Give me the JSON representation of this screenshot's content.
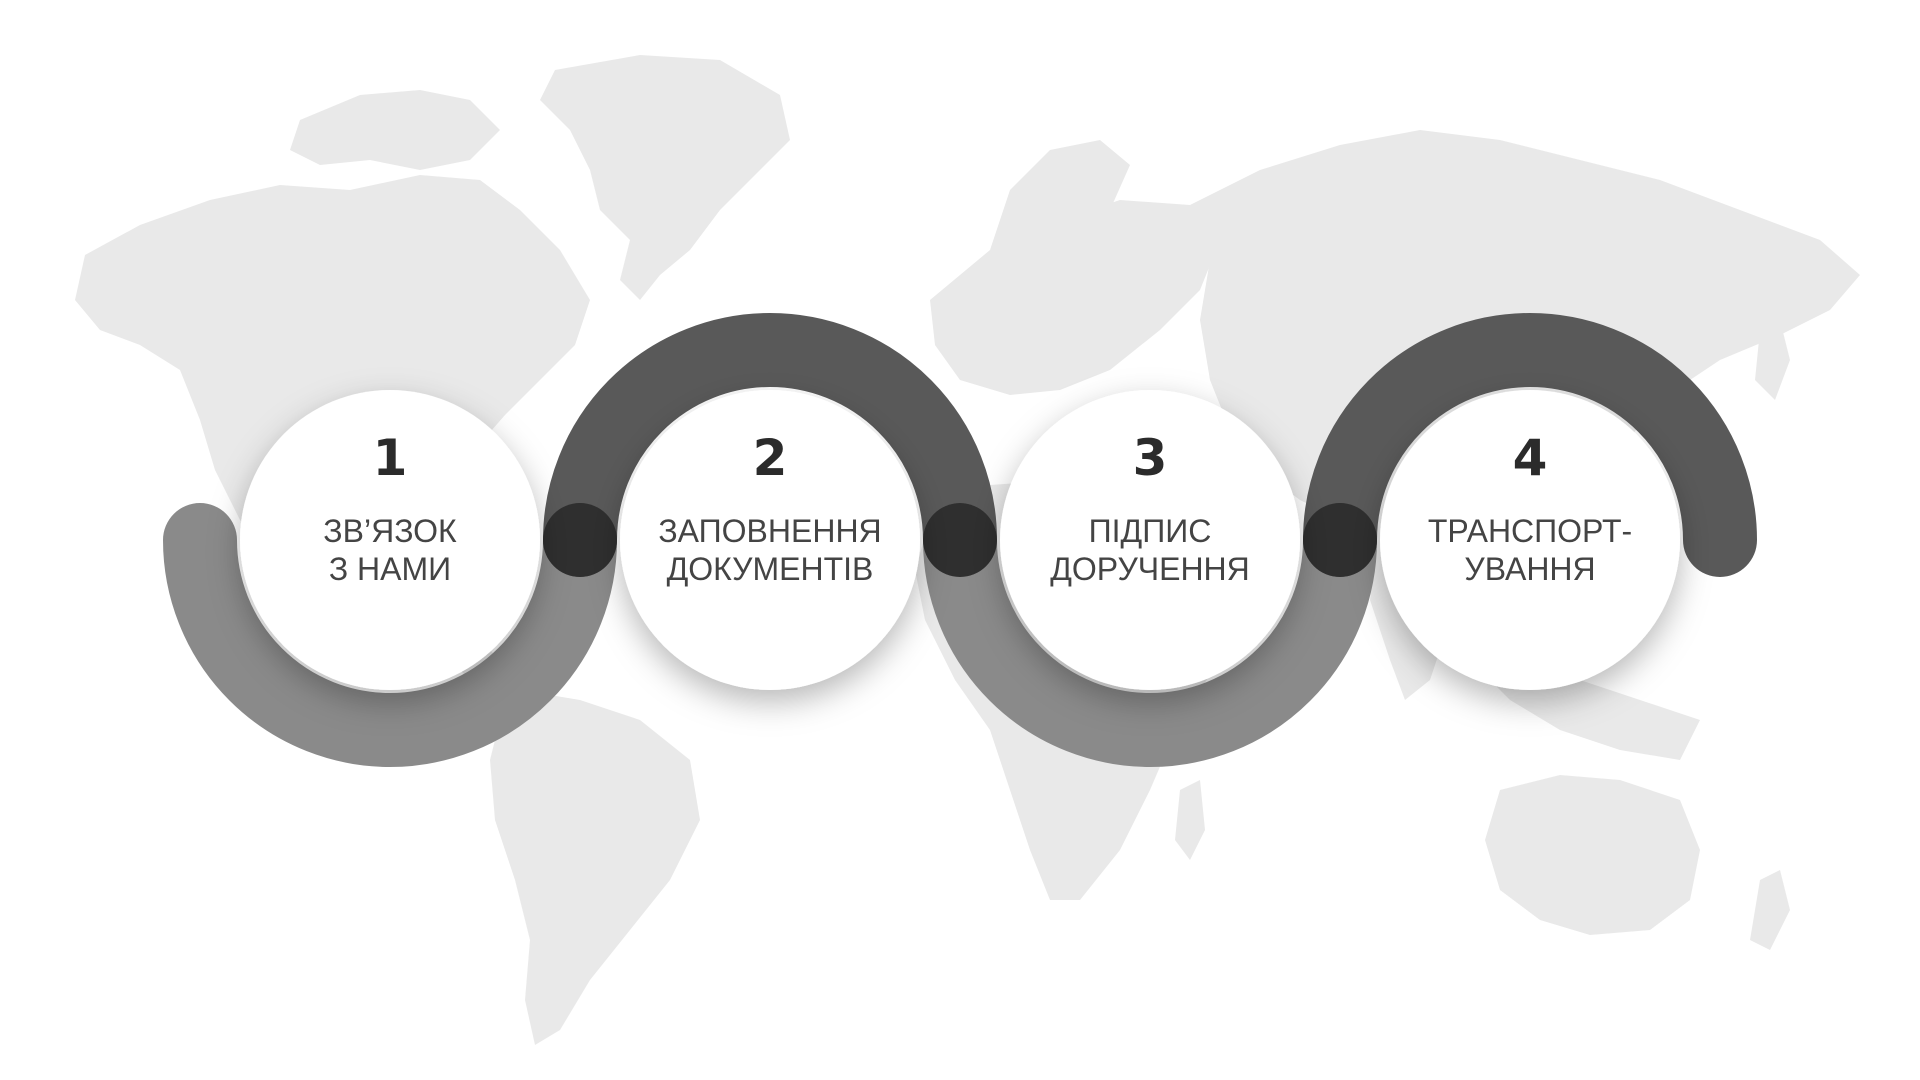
{
  "diagram": {
    "steps": [
      {
        "number": "1",
        "line1": "ЗВ’ЯЗОК",
        "line2": "З НАМИ"
      },
      {
        "number": "2",
        "line1": "ЗАПОВНЕННЯ",
        "line2": "ДОКУМЕНТІВ"
      },
      {
        "number": "3",
        "line1": "ПІДПИС",
        "line2": "ДОРУЧЕННЯ"
      },
      {
        "number": "4",
        "line1": "ТРАНСПОРТ-",
        "line2": "УВАННЯ"
      }
    ]
  },
  "colors": {
    "background": "#ffffff",
    "map": "#e9e9e9",
    "arc_dark": "#595959",
    "arc_light": "#8a8a8a",
    "joint": "#2f2f2f",
    "circle": "#ffffff",
    "number_text": "#2b2b2b",
    "label_text": "#444444"
  }
}
